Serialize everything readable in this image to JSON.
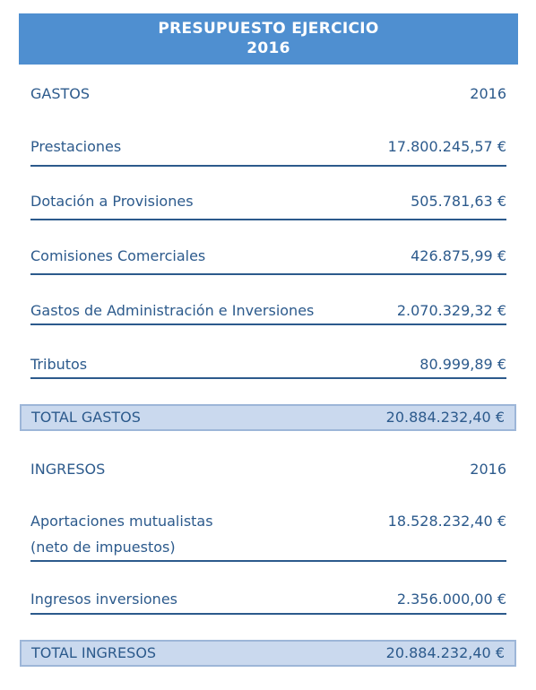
{
  "header": {
    "title_line1": "PRESUPUESTO EJERCICIO",
    "title_line2": "2016"
  },
  "gastos": {
    "heading": "GASTOS",
    "year": "2016",
    "items": [
      {
        "label": "Prestaciones",
        "value": "17.800.245,57 €"
      },
      {
        "label": "Dotación a Provisiones",
        "value": "505.781,63 €"
      },
      {
        "label": "Comisiones Comerciales",
        "value": "426.875,99 €"
      },
      {
        "label": "Gastos de Administración e Inversiones",
        "value": "2.070.329,32 €"
      },
      {
        "label": "Tributos",
        "value": "80.999,89 €"
      }
    ],
    "total_label": "TOTAL GASTOS",
    "total_value": "20.884.232,40 €"
  },
  "ingresos": {
    "heading": "INGRESOS",
    "year": "2016",
    "items": [
      {
        "label_line1": "Aportaciones mutualistas",
        "label_line2": "(neto de impuestos)",
        "value": "18.528.232,40 €"
      },
      {
        "label": "Ingresos inversiones",
        "value": "2.356.000,00 €"
      }
    ],
    "total_label": "TOTAL INGRESOS",
    "total_value": "20.884.232,40 €"
  }
}
